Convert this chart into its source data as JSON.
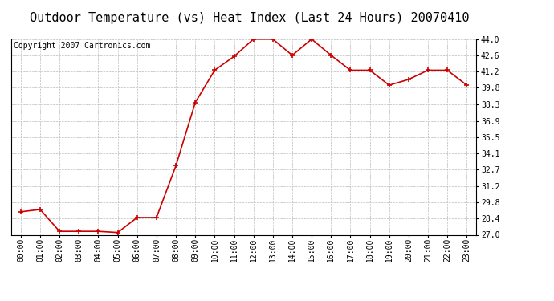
{
  "title": "Outdoor Temperature (vs) Heat Index (Last 24 Hours) 20070410",
  "copyright": "Copyright 2007 Cartronics.com",
  "x_labels": [
    "00:00",
    "01:00",
    "02:00",
    "03:00",
    "04:00",
    "05:00",
    "06:00",
    "07:00",
    "08:00",
    "09:00",
    "10:00",
    "11:00",
    "12:00",
    "13:00",
    "14:00",
    "15:00",
    "16:00",
    "17:00",
    "18:00",
    "19:00",
    "20:00",
    "21:00",
    "22:00",
    "23:00"
  ],
  "y_values": [
    29.0,
    29.2,
    27.3,
    27.3,
    27.3,
    27.2,
    28.5,
    28.5,
    33.0,
    38.5,
    41.3,
    42.5,
    44.0,
    44.0,
    42.6,
    44.0,
    42.6,
    41.3,
    41.3,
    40.0,
    40.5,
    41.3,
    41.3,
    40.0
  ],
  "line_color": "#cc0000",
  "marker_color": "#cc0000",
  "bg_color": "#ffffff",
  "grid_color": "#bbbbbb",
  "ylim_min": 27.0,
  "ylim_max": 44.0,
  "yticks": [
    27.0,
    28.4,
    29.8,
    31.2,
    32.7,
    34.1,
    35.5,
    36.9,
    38.3,
    39.8,
    41.2,
    42.6,
    44.0
  ],
  "title_fontsize": 11,
  "tick_fontsize": 7,
  "copyright_fontsize": 7
}
